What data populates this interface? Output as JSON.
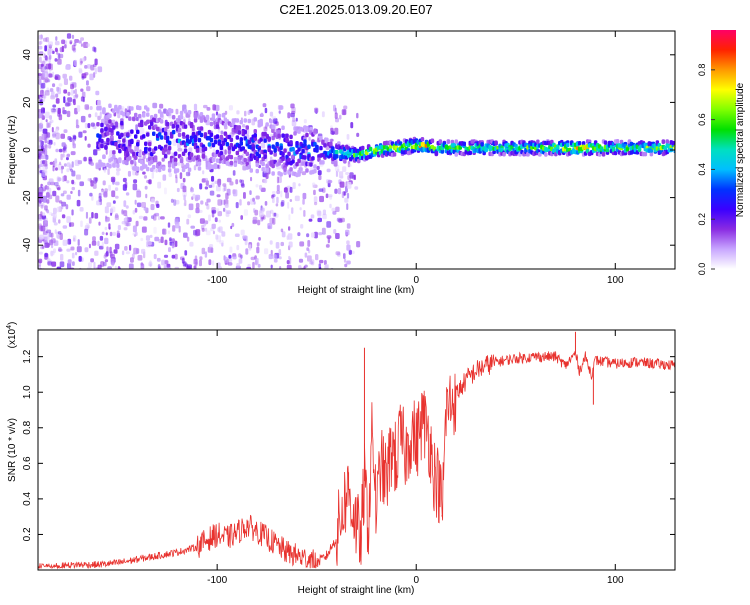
{
  "title": "C2E1.2025.013.09.20.E07",
  "colors": {
    "snr_line": "#e8322e",
    "frame": "#000000",
    "spectrum_background": "#ffffff"
  },
  "chart_data": [
    {
      "type": "heatmap",
      "name": "spectrogram",
      "xlabel": "Height of straight line (km)",
      "ylabel": "Frequency (Hz)",
      "xlim": [
        -190,
        130
      ],
      "ylim": [
        -50,
        50
      ],
      "x_ticks": [
        -100,
        0,
        100
      ],
      "x_tick_labels": [
        "-100",
        "0",
        "100"
      ],
      "y_ticks": [
        -40,
        -20,
        0,
        20,
        40
      ],
      "y_tick_labels": [
        "-40",
        "-20",
        "0",
        "20",
        "40"
      ],
      "grid": false,
      "colorbar": {
        "label": "Normalized spectral amplitude",
        "range": [
          0,
          0.96
        ],
        "ticks": [
          0.0,
          0.2,
          0.4,
          0.6,
          0.8
        ],
        "tick_labels": [
          "0.0",
          "0.2",
          "0.4",
          "0.6",
          "0.8"
        ],
        "colormap": [
          "#ffffff",
          "#c8a6ff",
          "#8a2be2",
          "#3a00ff",
          "#0033ff",
          "#00bfff",
          "#00e0c0",
          "#00e000",
          "#80ff00",
          "#ffff00",
          "#ff9900",
          "#ff2200",
          "#ff0066"
        ]
      },
      "description_of_trend": "broad scattered energy from -190 to -50 km spanning about -50 to 20 Hz, narrowing into a strong band near 0 to 2 Hz from about -50 km to 130 km, with amplitude peaks near -25 km, -8 km, 5 km and 80 km",
      "band": {
        "x": [
          -160,
          -140,
          -120,
          -100,
          -80,
          -60,
          -50,
          -40,
          -30,
          -20,
          -10,
          0,
          5,
          10,
          20,
          40,
          60,
          80,
          100,
          130
        ],
        "center_hz": [
          6,
          5,
          4,
          4,
          2,
          0,
          0,
          -1,
          -2,
          0,
          1,
          2,
          2,
          1,
          1,
          1,
          1,
          1,
          1,
          1
        ],
        "half_width_hz": [
          6,
          6,
          6,
          5,
          5,
          5,
          4,
          3,
          2,
          2,
          2,
          2,
          2,
          2,
          2,
          2,
          2,
          2,
          2,
          2
        ],
        "amplitude": [
          0.25,
          0.28,
          0.3,
          0.3,
          0.3,
          0.32,
          0.35,
          0.45,
          0.6,
          0.75,
          0.72,
          0.78,
          0.8,
          0.62,
          0.6,
          0.6,
          0.6,
          0.82,
          0.6,
          0.62
        ]
      }
    },
    {
      "type": "line",
      "name": "snr",
      "xlabel": "Height of straight line (km)",
      "ylabel": "SNR (10 * v/v)",
      "y_scale_note": "(x10",
      "y_scale_exponent": "4",
      "xlim": [
        -190,
        130
      ],
      "ylim": [
        0,
        1.35
      ],
      "x_ticks": [
        -100,
        0,
        100
      ],
      "x_tick_labels": [
        "-100",
        "0",
        "100"
      ],
      "y_ticks": [
        0.2,
        0.4,
        0.6,
        0.8,
        1.0,
        1.2
      ],
      "y_tick_labels": [
        "0.2",
        "0.4",
        "0.6",
        "0.8",
        "1.0",
        "1.2"
      ],
      "grid": false,
      "series": [
        {
          "x": [
            -190,
            -180,
            -170,
            -160,
            -150,
            -140,
            -130,
            -120,
            -110,
            -105,
            -100,
            -95,
            -90,
            -85,
            -80,
            -75,
            -70,
            -65,
            -60,
            -55,
            -50,
            -45,
            -40,
            -37,
            -34,
            -31,
            -28,
            -26,
            -24,
            -22,
            -20,
            -18,
            -15,
            -12,
            -10,
            -8,
            -5,
            -2,
            0,
            3,
            6,
            9,
            12,
            13,
            15,
            18,
            22,
            26,
            30,
            35,
            40,
            50,
            60,
            70,
            75,
            80,
            82,
            85,
            88,
            90,
            95,
            100,
            110,
            120,
            130
          ],
          "y": [
            0.02,
            0.02,
            0.03,
            0.03,
            0.04,
            0.06,
            0.08,
            0.1,
            0.13,
            0.17,
            0.2,
            0.18,
            0.21,
            0.25,
            0.22,
            0.18,
            0.14,
            0.1,
            0.08,
            0.06,
            0.04,
            0.08,
            0.18,
            0.35,
            0.45,
            0.3,
            0.15,
            0.5,
            0.25,
            0.8,
            0.3,
            0.6,
            0.5,
            0.7,
            0.6,
            0.75,
            0.65,
            0.8,
            0.7,
            0.85,
            0.78,
            0.55,
            0.45,
            0.3,
            0.9,
            0.95,
            1.02,
            1.08,
            1.12,
            1.15,
            1.17,
            1.19,
            1.2,
            1.2,
            1.15,
            1.22,
            1.12,
            1.2,
            1.1,
            1.18,
            1.17,
            1.16,
            1.17,
            1.16,
            1.15
          ],
          "spikes": [
            {
              "x": -26,
              "y": 1.25
            },
            {
              "x": -34,
              "y": 0.55
            },
            {
              "x": 13,
              "y": 0.31
            },
            {
              "x": 80,
              "y": 1.34
            },
            {
              "x": 89,
              "y": 0.93
            }
          ]
        }
      ]
    }
  ]
}
